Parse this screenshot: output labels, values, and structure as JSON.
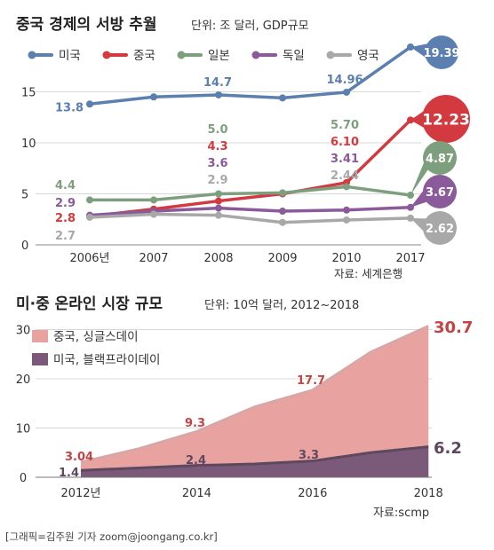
{
  "chart_data": [
    {
      "type": "line",
      "title": "중국 경제의 서방 추월",
      "unit_note": "단위: 조 달러, GDP규모",
      "source": "자료: 세계은행",
      "categories": [
        "2006년",
        "2007",
        "2008",
        "2009",
        "2010",
        "2017"
      ],
      "x": [
        2006,
        2007,
        2008,
        2009,
        2010,
        2017
      ],
      "yticks": [
        "0",
        "5",
        "10",
        "15"
      ],
      "ylim": [
        0,
        21
      ],
      "grid": true,
      "legend_position": "top",
      "series": [
        {
          "name": "미국",
          "color": "#5b7fae",
          "values": [
            13.8,
            14.5,
            14.7,
            14.4,
            14.96,
            19.39
          ],
          "labels": [
            "13.8",
            "",
            "14.7",
            "",
            "14.96",
            "19.39"
          ]
        },
        {
          "name": "중국",
          "color": "#d23a3f",
          "values": [
            2.8,
            3.5,
            4.3,
            5.0,
            6.1,
            12.23
          ],
          "labels": [
            "2.8",
            "",
            "4.3",
            "",
            "6.10",
            "12.23"
          ]
        },
        {
          "name": "일본",
          "color": "#7e9f7e",
          "values": [
            4.4,
            4.4,
            5.0,
            5.1,
            5.7,
            4.87
          ],
          "labels": [
            "4.4",
            "",
            "5.0",
            "",
            "5.70",
            "4.87"
          ]
        },
        {
          "name": "독일",
          "color": "#8a5a9a",
          "values": [
            2.9,
            3.3,
            3.6,
            3.3,
            3.41,
            3.67
          ],
          "labels": [
            "2.9",
            "",
            "3.6",
            "",
            "3.41",
            "3.67"
          ]
        },
        {
          "name": "영국",
          "color": "#a8a8a8",
          "values": [
            2.7,
            3.0,
            2.9,
            2.2,
            2.44,
            2.62
          ],
          "labels": [
            "2.7",
            "",
            "2.9",
            "",
            "2.44",
            "2.62"
          ]
        }
      ]
    },
    {
      "type": "area",
      "title": "미·중 온라인 시장 규모",
      "unit_note": "단위: 10억 달러, 2012~2018",
      "source": "자료:scmp",
      "x": [
        2012,
        2013,
        2014,
        2015,
        2016,
        2017,
        2018
      ],
      "xticks": [
        "2012년",
        "2014",
        "2016",
        "2018"
      ],
      "yticks": [
        "0",
        "10",
        "20",
        "30"
      ],
      "ylim": [
        0,
        32
      ],
      "grid": true,
      "legend_position": "top-left",
      "series": [
        {
          "name": "중국, 싱글스데이",
          "color": "#e8a3a1",
          "line": "#d9a6a6",
          "values": [
            3.04,
            5.8,
            9.3,
            14.3,
            17.7,
            25.4,
            30.7
          ],
          "labels": [
            "3.04",
            "",
            "9.3",
            "",
            "17.7",
            "",
            "30.7"
          ]
        },
        {
          "name": "미국, 블랙프라이데이",
          "color": "#7a5a78",
          "line": "#5e4860",
          "values": [
            1.4,
            1.9,
            2.4,
            2.7,
            3.3,
            5.0,
            6.2
          ],
          "labels": [
            "1.4",
            "",
            "2.4",
            "",
            "3.3",
            "",
            "6.2"
          ]
        }
      ]
    }
  ],
  "credit": "[그래픽=김주원 기자 zoom@joongang.co.kr]"
}
